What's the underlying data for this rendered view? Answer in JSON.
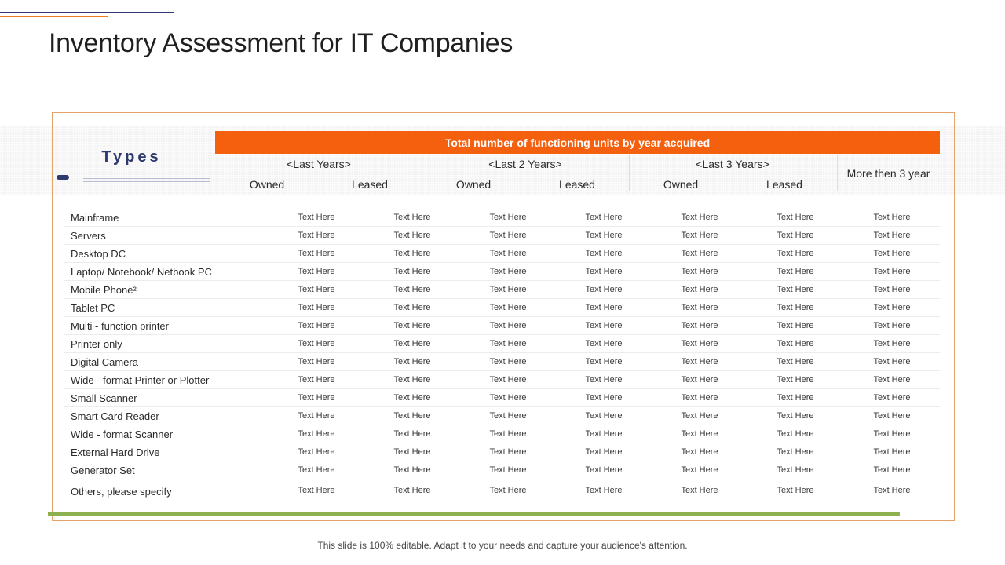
{
  "title": "Inventory Assessment for IT Companies",
  "types_label": "Types",
  "header": {
    "banner": "Total number of functioning units by year acquired",
    "groups": [
      "<Last Years>",
      "<Last 2 Years>",
      "<Last 3 Years>"
    ],
    "subheaders": [
      "Owned",
      "Leased",
      "Owned",
      "Leased",
      "Owned",
      "Leased"
    ],
    "more": "More then 3 year"
  },
  "rows": [
    {
      "label": "Mainframe",
      "cells": [
        "Text Here",
        "Text Here",
        "Text Here",
        "Text Here",
        "Text Here",
        "Text Here",
        "Text Here"
      ]
    },
    {
      "label": "Servers",
      "cells": [
        "Text Here",
        "Text Here",
        "Text Here",
        "Text Here",
        "Text Here",
        "Text Here",
        "Text Here"
      ]
    },
    {
      "label": "Desktop DC",
      "cells": [
        "Text Here",
        "Text Here",
        "Text Here",
        "Text Here",
        "Text Here",
        "Text Here",
        "Text Here"
      ]
    },
    {
      "label": "Laptop/ Notebook/ Netbook PC",
      "cells": [
        "Text Here",
        "Text Here",
        "Text Here",
        "Text Here",
        "Text Here",
        "Text Here",
        "Text Here"
      ]
    },
    {
      "label": "Mobile Phone²",
      "cells": [
        "Text Here",
        "Text Here",
        "Text Here",
        "Text Here",
        "Text Here",
        "Text Here",
        "Text Here"
      ]
    },
    {
      "label": "Tablet PC",
      "cells": [
        "Text Here",
        "Text Here",
        "Text Here",
        "Text Here",
        "Text Here",
        "Text Here",
        "Text Here"
      ]
    },
    {
      "label": "Multi - function printer",
      "cells": [
        "Text Here",
        "Text Here",
        "Text Here",
        "Text Here",
        "Text Here",
        "Text Here",
        "Text Here"
      ]
    },
    {
      "label": "Printer only",
      "cells": [
        "Text Here",
        "Text Here",
        "Text Here",
        "Text Here",
        "Text Here",
        "Text Here",
        "Text Here"
      ]
    },
    {
      "label": "Digital Camera",
      "cells": [
        "Text Here",
        "Text Here",
        "Text Here",
        "Text Here",
        "Text Here",
        "Text Here",
        "Text Here"
      ]
    },
    {
      "label": "Wide - format Printer or Plotter",
      "cells": [
        "Text Here",
        "Text Here",
        "Text Here",
        "Text Here",
        "Text Here",
        "Text Here",
        "Text Here"
      ]
    },
    {
      "label": "Small Scanner",
      "cells": [
        "Text Here",
        "Text Here",
        "Text Here",
        "Text Here",
        "Text Here",
        "Text Here",
        "Text Here"
      ]
    },
    {
      "label": "Smart Card Reader",
      "cells": [
        "Text Here",
        "Text Here",
        "Text Here",
        "Text Here",
        "Text Here",
        "Text Here",
        "Text Here"
      ]
    },
    {
      "label": "Wide - format Scanner",
      "cells": [
        "Text Here",
        "Text Here",
        "Text Here",
        "Text Here",
        "Text Here",
        "Text Here",
        "Text Here"
      ]
    },
    {
      "label": "External Hard Drive",
      "cells": [
        "Text Here",
        "Text Here",
        "Text Here",
        "Text Here",
        "Text Here",
        "Text Here",
        "Text Here"
      ]
    },
    {
      "label": "Generator Set",
      "cells": [
        "Text Here",
        "Text Here",
        "Text Here",
        "Text Here",
        "Text Here",
        "Text Here",
        "Text Here"
      ]
    },
    {
      "label": "Others, please specify",
      "cells": [
        "Text Here",
        "Text Here",
        "Text Here",
        "Text Here",
        "Text Here",
        "Text Here",
        "Text Here"
      ]
    }
  ],
  "footer": "This slide is 100% editable. Adapt it to your needs and capture your audience's attention."
}
